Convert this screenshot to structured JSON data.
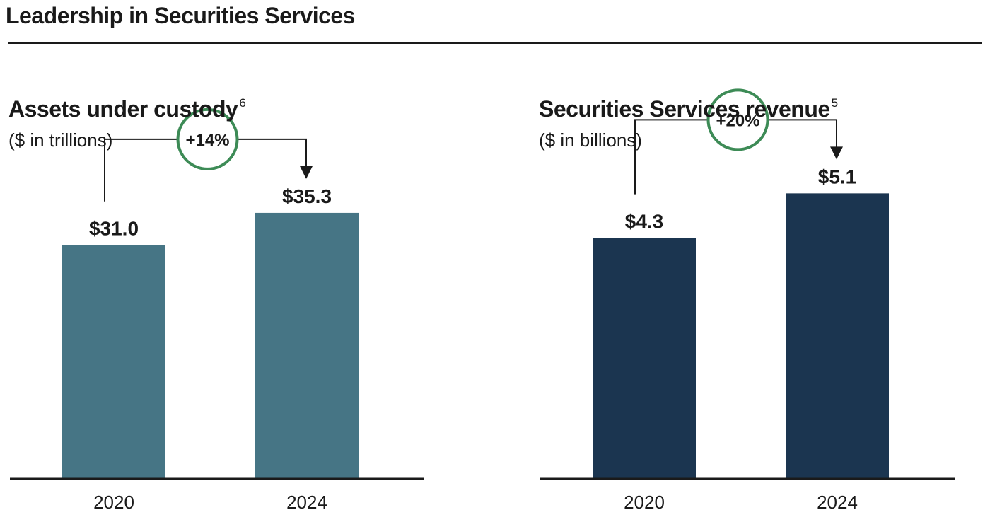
{
  "page": {
    "title": "Leadership in Securities Services"
  },
  "colors": {
    "custody_bar": "#467585",
    "revenue_bar": "#1b3550",
    "growth_circle": "#3d8b56",
    "ink": "#1a1a1a"
  },
  "chart_data": [
    {
      "type": "bar",
      "title": "Assets under custody",
      "title_footnote": "6",
      "subtitle": "($ in trillions)",
      "categories": [
        "2020",
        "2024"
      ],
      "values": [
        31.0,
        35.3
      ],
      "value_labels": [
        "$31.0",
        "$35.3"
      ],
      "growth_label": "+14%",
      "bar_color": "#467585",
      "ylim": [
        0,
        52
      ],
      "grid": false,
      "legend": "none"
    },
    {
      "type": "bar",
      "title": "Securities Services revenue",
      "title_footnote": "5",
      "subtitle": "($ in billions)",
      "categories": [
        "2020",
        "2024"
      ],
      "values": [
        4.3,
        5.1
      ],
      "value_labels": [
        "$4.3",
        "$5.1"
      ],
      "growth_label": "+20%",
      "bar_color": "#1b3550",
      "ylim": [
        0,
        7
      ],
      "grid": false,
      "legend": "none"
    }
  ]
}
